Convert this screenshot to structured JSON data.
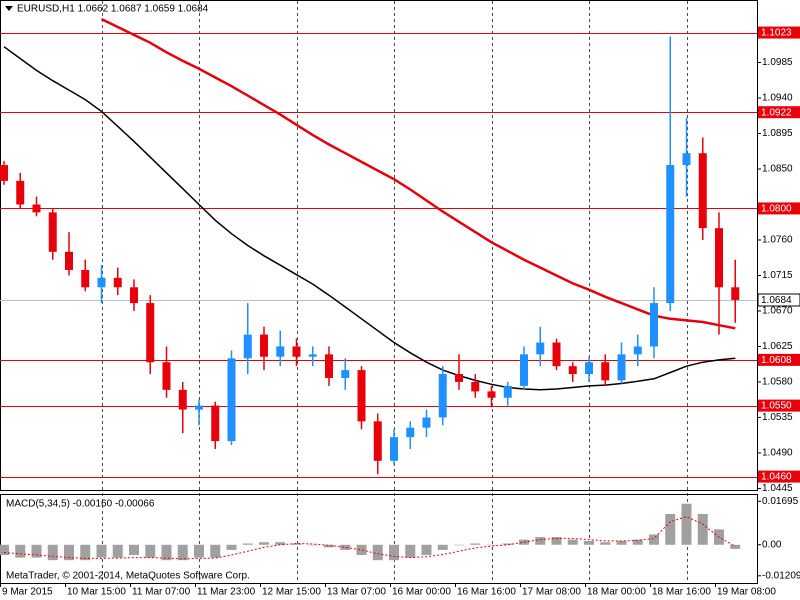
{
  "chart_data": [
    {
      "type": "candlestick",
      "title": "EURUSD,H1  1.0662 1.0687 1.0659 1.0684",
      "footer": "MetaTrader, © 2001-2014, MetaQuotes Software Corp.",
      "categories": [
        "9 Mar 2015",
        null,
        null,
        null,
        "10 Mar 15:00",
        null,
        null,
        null,
        "11 Mar 07:00",
        null,
        null,
        null,
        "11 Mar 23:00",
        null,
        null,
        null,
        "12 Mar 15:00",
        null,
        null,
        null,
        "13 Mar 07:00",
        null,
        null,
        null,
        "16 Mar 00:00",
        null,
        null,
        null,
        "16 Mar 16:00",
        null,
        null,
        null,
        "17 Mar 08:00",
        null,
        null,
        null,
        "18 Mar 00:00",
        null,
        null,
        null,
        "18 Mar 16:00",
        null,
        null,
        null,
        "19 Mar 08:00",
        null
      ],
      "open": [
        1.0855,
        1.0835,
        1.0805,
        1.0795,
        1.0745,
        1.0722,
        1.07,
        1.0712,
        1.07,
        1.068,
        1.0605,
        1.057,
        1.0545,
        1.055,
        1.0505,
        1.061,
        1.064,
        1.0612,
        1.0625,
        1.0612,
        1.0615,
        1.0585,
        1.0595,
        1.053,
        1.048,
        1.051,
        1.0522,
        1.0535,
        1.059,
        1.058,
        1.0568,
        1.056,
        1.0575,
        1.0615,
        1.063,
        1.06,
        1.059,
        1.0605,
        1.0582,
        1.0615,
        1.0625,
        1.068,
        1.0855,
        1.087,
        1.0775,
        1.07
      ],
      "high": [
        1.086,
        1.0845,
        1.0815,
        1.08,
        1.077,
        1.0735,
        1.0728,
        1.0725,
        1.071,
        1.069,
        1.0625,
        1.058,
        1.0558,
        1.0555,
        1.062,
        1.068,
        1.065,
        1.0645,
        1.0635,
        1.0625,
        1.0625,
        1.061,
        1.06,
        1.054,
        1.052,
        1.053,
        1.0545,
        1.06,
        1.0615,
        1.059,
        1.0575,
        1.058,
        1.0625,
        1.065,
        1.0635,
        1.0605,
        1.0612,
        1.0615,
        1.063,
        1.064,
        1.07,
        1.1018,
        1.0915,
        1.089,
        1.0795,
        1.0735
      ],
      "low": [
        1.083,
        1.08,
        1.079,
        1.0735,
        1.0715,
        1.0695,
        1.068,
        1.069,
        1.067,
        1.059,
        1.056,
        1.0515,
        1.0525,
        1.0495,
        1.05,
        1.059,
        1.0595,
        1.06,
        1.06,
        1.06,
        1.0575,
        1.057,
        1.052,
        1.0463,
        1.0475,
        1.0495,
        1.051,
        1.0525,
        1.057,
        1.056,
        1.0548,
        1.055,
        1.057,
        1.06,
        1.0595,
        1.058,
        1.058,
        1.0575,
        1.0578,
        1.06,
        1.061,
        1.067,
        1.0815,
        1.076,
        1.064,
        1.0655
      ],
      "close": [
        1.0835,
        1.0805,
        1.0795,
        1.0745,
        1.0722,
        1.07,
        1.0712,
        1.07,
        1.068,
        1.0605,
        1.057,
        1.0545,
        1.055,
        1.0505,
        1.061,
        1.064,
        1.0612,
        1.0625,
        1.0612,
        1.0615,
        1.0585,
        1.0595,
        1.053,
        1.048,
        1.051,
        1.0522,
        1.0535,
        1.059,
        1.058,
        1.0568,
        1.056,
        1.0575,
        1.0615,
        1.063,
        1.06,
        1.059,
        1.0605,
        1.0582,
        1.0615,
        1.0625,
        1.068,
        1.0855,
        1.087,
        1.0775,
        1.07,
        1.0684
      ],
      "up_color": "#1e90ff",
      "down_color": "#e8000b",
      "lines": [
        {
          "color": "#e8000b",
          "values": [
            null,
            null,
            null,
            null,
            null,
            null,
            1.104,
            1.103,
            1.102,
            1.101,
            1.0998,
            1.0987,
            1.0977,
            1.0966,
            1.0955,
            1.0943,
            1.0931,
            1.0919,
            1.0906,
            1.0893,
            1.0881,
            1.087,
            1.0859,
            1.0848,
            1.0837,
            1.0824,
            1.081,
            1.0796,
            1.0783,
            1.077,
            1.0757,
            1.0746,
            1.0735,
            1.0725,
            1.0715,
            1.0705,
            1.0697,
            1.0688,
            1.068,
            1.0672,
            1.0664,
            1.066,
            1.0658,
            1.0656,
            1.0652,
            1.0648
          ]
        },
        {
          "color": "#000000",
          "values": [
            1.1005,
            1.099,
            1.0975,
            1.0962,
            1.095,
            1.0938,
            1.0923,
            1.0904,
            1.0885,
            1.0865,
            1.0845,
            1.0825,
            1.0805,
            1.0785,
            1.0768,
            1.0753,
            1.074,
            1.0728,
            1.0716,
            1.0704,
            1.069,
            1.0675,
            1.066,
            1.0645,
            1.063,
            1.0617,
            1.0605,
            1.0595,
            1.0588,
            1.0582,
            1.0577,
            1.0573,
            1.0571,
            1.057,
            1.0571,
            1.0573,
            1.0575,
            1.0576,
            1.0578,
            1.0581,
            1.0584,
            1.0592,
            1.06,
            1.0605,
            1.0608,
            1.061
          ]
        }
      ],
      "levels": [
        1.1023,
        1.0922,
        {
          "value": 1.08,
          "label": "1.0800"
        },
        1.0608,
        {
          "value": 1.055,
          "label": "1.0550"
        },
        {
          "value": 1.046,
          "label": "1.0460"
        }
      ],
      "level_color": "#e8000b",
      "current_price": 1.0684,
      "ylim": [
        1.0443,
        1.1063
      ],
      "yticks": [
        1.0985,
        {
          "value": 1.094,
          "label": "1.0940"
        },
        1.0895,
        {
          "value": 1.085,
          "label": "1.0850"
        },
        {
          "value": 1.076,
          "label": "1.0760"
        },
        1.0715,
        {
          "value": 1.067,
          "label": "1.0670"
        },
        1.0625,
        {
          "value": 1.058,
          "label": "1.0580"
        },
        1.0535,
        {
          "value": 1.049,
          "label": "1.0490"
        },
        1.0445
      ],
      "grid": true
    },
    {
      "type": "macd",
      "title": "MACD(5,34,5) -0.00160 -0.00066",
      "values": [
        -0.004,
        -0.005,
        -0.005,
        -0.006,
        -0.006,
        -0.006,
        -0.005,
        -0.005,
        -0.004,
        -0.005,
        -0.006,
        -0.006,
        -0.005,
        -0.005,
        -0.002,
        0.0005,
        0.001,
        0.001,
        0.0005,
        0,
        -0.001,
        -0.002,
        -0.004,
        -0.006,
        -0.006,
        -0.005,
        -0.004,
        -0.002,
        0,
        0.0005,
        0,
        0.0005,
        0.002,
        0.003,
        0.003,
        0.002,
        0.0015,
        0.001,
        0.0015,
        0.002,
        0.004,
        0.012,
        0.016,
        0.012,
        0.006,
        -0.0016
      ],
      "signal": [
        -0.003,
        -0.0035,
        -0.004,
        -0.0045,
        -0.005,
        -0.0053,
        -0.0053,
        -0.0052,
        -0.005,
        -0.005,
        -0.0052,
        -0.0055,
        -0.0053,
        -0.0052,
        -0.004,
        -0.0025,
        -0.001,
        0,
        0.0005,
        0.0003,
        -0.0002,
        -0.001,
        -0.002,
        -0.0035,
        -0.0045,
        -0.005,
        -0.0047,
        -0.0038,
        -0.0025,
        -0.0012,
        -0.0005,
        0,
        0.001,
        0.002,
        0.0025,
        0.0025,
        0.002,
        0.0015,
        0.0015,
        0.0017,
        0.0025,
        0.009,
        0.011,
        0.008,
        0.003,
        -0.00066
      ],
      "color": "#a0a0a0",
      "signal_color": "#e8000b",
      "ylim": [
        -0.0149,
        0.0194
      ],
      "yticks": [
        0.01695,
        {
          "value": 0,
          "label": "0.00"
        },
        -0.01209
      ]
    }
  ]
}
